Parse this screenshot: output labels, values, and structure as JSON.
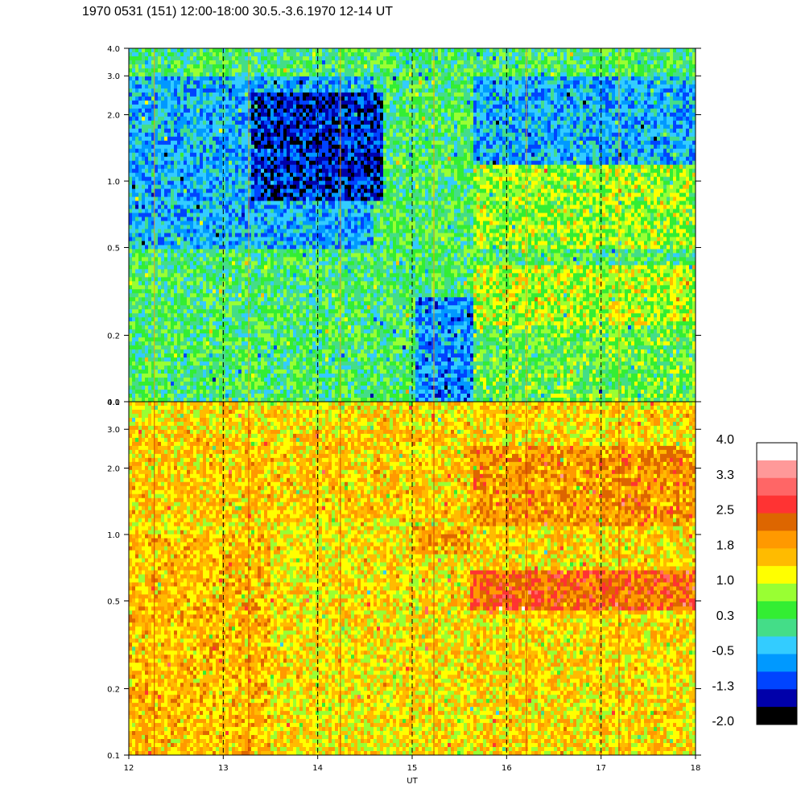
{
  "title": "1970 0531 (151) 12:00-18:00 30.5.-3.6.1970  12-14 UT",
  "chart_data": [
    {
      "type": "heatmap",
      "panel": "top",
      "x": [
        12,
        13,
        14,
        15,
        16,
        17,
        18
      ],
      "xlim": [
        12,
        18
      ],
      "ylim": [
        0.1,
        4.0
      ],
      "yscale": "log",
      "yticks": [
        "0.1",
        "0.2",
        "0.5",
        "1.0",
        "2.0",
        "3.0",
        "4.0"
      ],
      "dashed_vlines": [
        13,
        14,
        15,
        16,
        17
      ],
      "regions": [
        {
          "x": [
            12.0,
            15.1
          ],
          "y": [
            0.1,
            4.0
          ],
          "level": 0.3
        },
        {
          "x": [
            12.0,
            14.6
          ],
          "y": [
            0.5,
            3.0
          ],
          "level": -0.5
        },
        {
          "x": [
            13.3,
            14.7
          ],
          "y": [
            0.8,
            2.5
          ],
          "level": -1.3
        },
        {
          "x": [
            15.05,
            15.65
          ],
          "y": [
            0.1,
            0.3
          ],
          "level": -0.7
        },
        {
          "x": [
            15.65,
            18.0
          ],
          "y": [
            0.1,
            0.25
          ],
          "level": 0.5
        },
        {
          "x": [
            15.65,
            18.0
          ],
          "y": [
            0.22,
            0.42
          ],
          "level": 0.9
        },
        {
          "x": [
            15.65,
            18.0
          ],
          "y": [
            0.5,
            1.2
          ],
          "level": 0.8
        },
        {
          "x": [
            15.65,
            18.0
          ],
          "y": [
            1.2,
            3.0
          ],
          "level": -0.5
        }
      ]
    },
    {
      "type": "heatmap",
      "panel": "bottom",
      "x": [
        12,
        13,
        14,
        15,
        16,
        17,
        18
      ],
      "xlim": [
        12,
        18
      ],
      "xlabel": "UT",
      "ylim": [
        0.1,
        4.0
      ],
      "yscale": "log",
      "yticks": [
        "0.1",
        "0.2",
        "0.5",
        "1.0",
        "2.0",
        "3.0",
        "4.0"
      ],
      "dashed_vlines": [
        13,
        14,
        15,
        16,
        17
      ],
      "regions": [
        {
          "x": [
            12.0,
            15.6
          ],
          "y": [
            0.1,
            4.0
          ],
          "level": 1.3
        },
        {
          "x": [
            12.0,
            13.5
          ],
          "y": [
            0.1,
            1.0
          ],
          "level": 1.6
        },
        {
          "x": [
            12.0,
            15.6
          ],
          "y": [
            1.2,
            3.0
          ],
          "level": 1.5
        },
        {
          "x": [
            15.0,
            15.6
          ],
          "y": [
            0.8,
            1.1
          ],
          "level": 1.8
        },
        {
          "x": [
            15.6,
            18.0
          ],
          "y": [
            0.1,
            4.0
          ],
          "level": 1.4
        },
        {
          "x": [
            15.6,
            18.0
          ],
          "y": [
            0.45,
            0.7
          ],
          "level": 2.3
        },
        {
          "x": [
            15.6,
            18.0
          ],
          "y": [
            1.1,
            2.5
          ],
          "level": 1.9
        }
      ]
    },
    {
      "type": "colorbar",
      "labels": [
        "4.0",
        "3.3",
        "2.5",
        "1.8",
        "1.0",
        "0.3",
        "-0.5",
        "-1.3",
        "-2.0"
      ],
      "colors": [
        "#ffffff",
        "#ff9999",
        "#ff6666",
        "#ff3333",
        "#dd6600",
        "#ff9900",
        "#ffbb00",
        "#ffff00",
        "#99ff33",
        "#33ee33",
        "#44dd88",
        "#33ccff",
        "#0099ff",
        "#0044ff",
        "#0000aa",
        "#000000"
      ]
    }
  ]
}
